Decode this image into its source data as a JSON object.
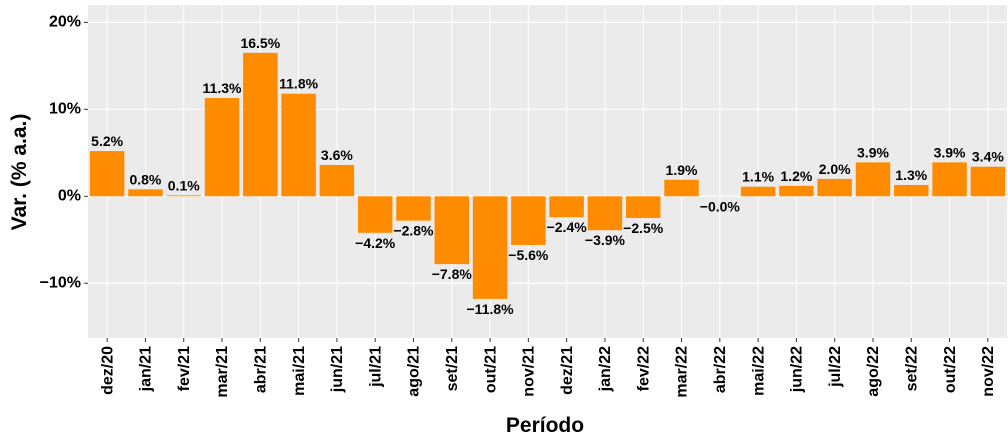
{
  "chart_data": {
    "type": "bar",
    "x_label": "Período",
    "y_label": "Var. (% a.a.)",
    "categories": [
      "dez/20",
      "jan/21",
      "fev/21",
      "mar/21",
      "abr/21",
      "mai/21",
      "jun/21",
      "jul/21",
      "ago/21",
      "set/21",
      "out/21",
      "nov/21",
      "dez/21",
      "jan/22",
      "fev/22",
      "mar/22",
      "abr/22",
      "mai/22",
      "jun/22",
      "jul/22",
      "ago/22",
      "set/22",
      "out/22",
      "nov/22"
    ],
    "values": [
      5.2,
      0.8,
      0.1,
      11.3,
      16.5,
      11.8,
      3.6,
      -4.2,
      -2.8,
      -7.8,
      -11.8,
      -5.6,
      -2.4,
      -3.9,
      -2.5,
      1.9,
      -0.0,
      1.1,
      1.2,
      2.0,
      3.9,
      1.3,
      3.9,
      3.4
    ],
    "value_labels": [
      "5.2%",
      "0.8%",
      "0.1%",
      "11.3%",
      "16.5%",
      "11.8%",
      "3.6%",
      "−4.2%",
      "−2.8%",
      "−7.8%",
      "−11.8%",
      "−5.6%",
      "−2.4%",
      "−3.9%",
      "−2.5%",
      "1.9%",
      "−0.0%",
      "1.1%",
      "1.2%",
      "2.0%",
      "3.9%",
      "1.3%",
      "3.9%",
      "3.4%"
    ],
    "color": "#ff8c00",
    "ylim": [
      -16.3,
      22
    ],
    "yticks": [
      {
        "value": -10,
        "label": "−10%"
      },
      {
        "value": 0,
        "label": "0%"
      },
      {
        "value": 10,
        "label": "10%"
      },
      {
        "value": 20,
        "label": "20%"
      }
    ],
    "grid": true
  }
}
